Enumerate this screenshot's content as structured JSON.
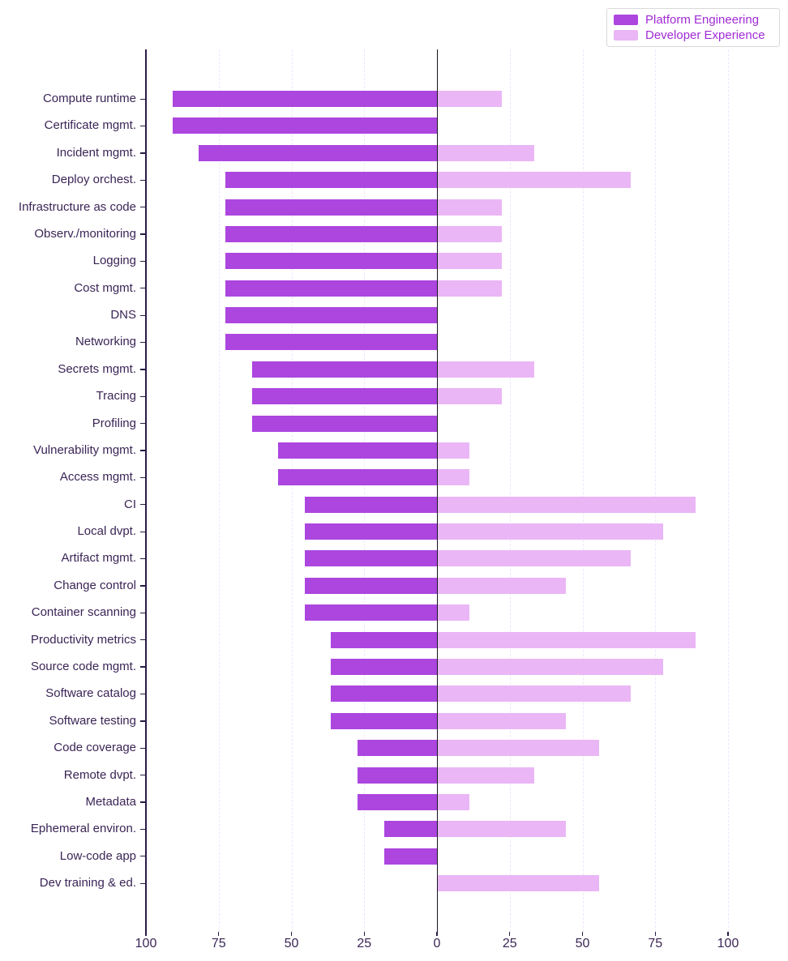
{
  "chart_data": {
    "type": "bar",
    "subtype": "diverging-horizontal",
    "title": "",
    "xlabel": "",
    "ylabel": "",
    "grid": "vertical-dashed",
    "legend_position": "top-right",
    "x_tick_labels": [
      "100",
      "75",
      "50",
      "25",
      "0",
      "25",
      "50",
      "75",
      "100"
    ],
    "x_tick_values": [
      -100,
      -75,
      -50,
      -25,
      0,
      25,
      50,
      75,
      100
    ],
    "xlim": [
      -100,
      100
    ],
    "categories": [
      "Compute runtime",
      "Certificate mgmt.",
      "Incident mgmt.",
      "Deploy orchest.",
      "Infrastructure as code",
      "Observ./monitoring",
      "Logging",
      "Cost mgmt.",
      "DNS",
      "Networking",
      "Secrets mgmt.",
      "Tracing",
      "Profiling",
      "Vulnerability mgmt.",
      "Access mgmt.",
      "CI",
      "Local dvpt.",
      "Artifact mgmt.",
      "Change control",
      "Container scanning",
      "Productivity metrics",
      "Source code mgmt.",
      "Software catalog",
      "Software testing",
      "Code coverage",
      "Remote dvpt.",
      "Metadata",
      "Ephemeral environ.",
      "Low-code app",
      "Dev training & ed."
    ],
    "series": [
      {
        "name": "Platform Engineering",
        "side": "left",
        "color": "#ac46df",
        "values": [
          90.9,
          90.9,
          81.8,
          72.7,
          72.7,
          72.7,
          72.7,
          72.7,
          72.7,
          72.7,
          63.6,
          63.6,
          63.6,
          54.5,
          54.5,
          45.5,
          45.5,
          45.5,
          45.5,
          45.5,
          36.4,
          36.4,
          36.4,
          36.4,
          27.3,
          27.3,
          27.3,
          18.2,
          18.2,
          0
        ]
      },
      {
        "name": "Developer Experience",
        "side": "right",
        "color": "#eab6f6",
        "values": [
          22.2,
          0,
          33.3,
          66.7,
          22.2,
          22.2,
          22.2,
          22.2,
          0,
          0,
          33.3,
          22.2,
          0,
          11.1,
          11.1,
          88.9,
          77.8,
          66.7,
          44.4,
          11.1,
          88.9,
          77.8,
          66.7,
          44.4,
          55.6,
          33.3,
          11.1,
          44.4,
          0,
          55.6
        ]
      }
    ]
  },
  "colors": {
    "axis_spine": "#2a1b45",
    "zero_line": "#19131f",
    "gridline": "#f1e4f9",
    "tick_label": "#3b2556",
    "legend_text": "#a02bd6",
    "background": "#ffffff"
  }
}
